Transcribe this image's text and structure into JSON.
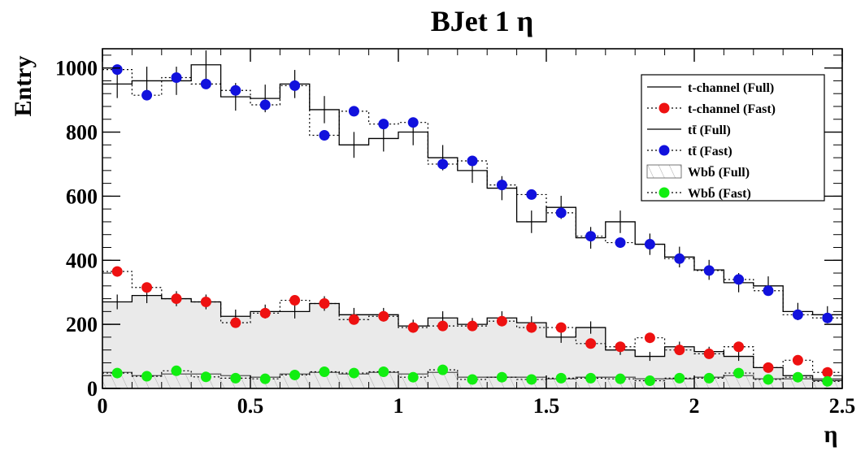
{
  "chart_data": {
    "type": "histogram",
    "title": "BJet 1 η",
    "xlabel": "η",
    "ylabel": "Entry",
    "xlim": [
      0,
      2.5
    ],
    "ylim": [
      0,
      1060
    ],
    "bin_edges": [
      0.0,
      0.1,
      0.2,
      0.3,
      0.4,
      0.5,
      0.6,
      0.7,
      0.8,
      0.9,
      1.0,
      1.1,
      1.2,
      1.3,
      1.4,
      1.5,
      1.6,
      1.7,
      1.8,
      1.9,
      2.0,
      2.1,
      2.2,
      2.3,
      2.4,
      2.5
    ],
    "x_ticks": [
      0,
      0.5,
      1,
      1.5,
      2,
      2.5
    ],
    "x_tick_labels": [
      "0",
      "0.5",
      "1",
      "1.5",
      "2",
      "2.5"
    ],
    "y_ticks": [
      0,
      200,
      400,
      600,
      800,
      1000
    ],
    "y_tick_labels": [
      "0",
      "200",
      "400",
      "600",
      "800",
      "1000"
    ],
    "series": [
      {
        "name": "t-channel (Full)",
        "style": "filled-step",
        "color": "#000000",
        "fill": "#d9d9d9",
        "values": [
          270,
          290,
          280,
          270,
          225,
          240,
          240,
          265,
          230,
          230,
          195,
          220,
          200,
          220,
          205,
          160,
          190,
          120,
          100,
          130,
          115,
          100,
          65,
          40,
          25
        ]
      },
      {
        "name": "t-channel (Fast)",
        "style": "markers",
        "color": "#ee1111",
        "values": [
          365,
          315,
          280,
          270,
          205,
          235,
          275,
          265,
          215,
          225,
          190,
          195,
          195,
          210,
          190,
          190,
          140,
          130,
          158,
          120,
          108,
          130,
          65,
          88,
          50
        ]
      },
      {
        "name": "tt̄ (Full)",
        "style": "step",
        "color": "#000000",
        "values": [
          950,
          960,
          960,
          1010,
          910,
          905,
          950,
          870,
          760,
          780,
          800,
          720,
          680,
          625,
          520,
          565,
          470,
          520,
          450,
          410,
          370,
          330,
          320,
          240,
          230
        ]
      },
      {
        "name": "tt̄ (Fast)",
        "style": "markers",
        "color": "#1111dd",
        "values": [
          995,
          915,
          970,
          950,
          930,
          885,
          945,
          790,
          865,
          825,
          830,
          700,
          710,
          635,
          605,
          548,
          475,
          455,
          450,
          405,
          368,
          340,
          305,
          230,
          220
        ]
      },
      {
        "name": "Wbb̄ (Full)",
        "style": "hatched-step",
        "color": "#555555",
        "values": [
          50,
          40,
          45,
          45,
          40,
          35,
          45,
          50,
          45,
          50,
          45,
          50,
          35,
          35,
          35,
          30,
          35,
          35,
          30,
          30,
          35,
          40,
          30,
          30,
          30
        ]
      },
      {
        "name": "Wbb̄ (Fast)",
        "style": "markers",
        "color": "#11ee11",
        "values": [
          48,
          38,
          55,
          36,
          32,
          30,
          42,
          52,
          48,
          52,
          35,
          58,
          28,
          35,
          28,
          32,
          32,
          30,
          24,
          32,
          32,
          48,
          28,
          35,
          22
        ]
      }
    ],
    "legend": {
      "placement": "top-right",
      "entries": [
        "t-channel (Full)",
        "t-channel (Fast)",
        "tt̄ (Full)",
        "tt̄ (Fast)",
        "Wbb̄ (Full)",
        "Wbb̄ (Fast)"
      ]
    }
  }
}
